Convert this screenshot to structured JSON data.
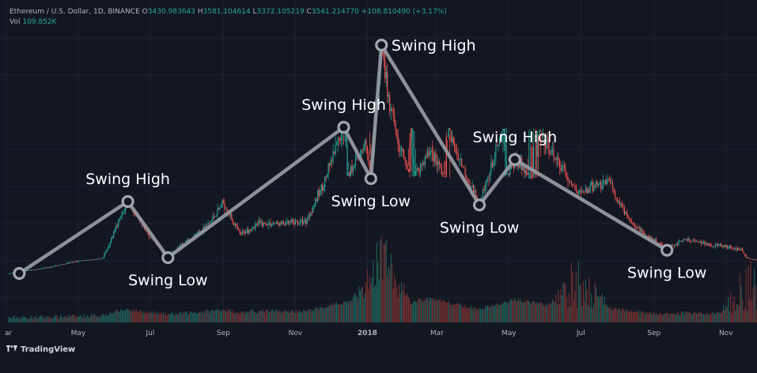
{
  "header": {
    "symbol": "Ethereum / U.S. Dollar, 1D, BINANCE",
    "o_label": "O",
    "o_value": "3430.983643",
    "h_label": "H",
    "h_value": "3581.104614",
    "l_label": "L",
    "l_value": "3372.105219",
    "c_label": "C",
    "c_value": "3541.214770",
    "change": "+108.810490 (+3.17%)",
    "vol_label": "Vol",
    "vol_value": "109.852K"
  },
  "brand": {
    "name": "TradingView",
    "icon": "tradingview-logo-icon"
  },
  "colors": {
    "background": "#131722",
    "up": "#26a69a",
    "down": "#ef5350",
    "swing_line": "#9598a1",
    "swing_text": "#ffffff",
    "axis_text": "#b2b5be"
  },
  "chart_data": {
    "type": "candlestick",
    "title": "Ethereum / U.S. Dollar, 1D, BINANCE",
    "x_axis": {
      "tick_labels": [
        "ar",
        "May",
        "Jul",
        "Sep",
        "Nov",
        "2018",
        "Mar",
        "May",
        "Jul",
        "Sep",
        "Nov"
      ]
    },
    "price_path": {
      "points": [
        [
          "2017-03-03",
          20
        ],
        [
          "2017-03-20",
          35
        ],
        [
          "2017-04-05",
          47
        ],
        [
          "2017-05-01",
          80
        ],
        [
          "2017-05-20",
          130
        ],
        [
          "2017-06-12",
          395
        ],
        [
          "2017-06-25",
          280
        ],
        [
          "2017-07-16",
          155
        ],
        [
          "2017-08-01",
          225
        ],
        [
          "2017-08-20",
          300
        ],
        [
          "2017-09-01",
          390
        ],
        [
          "2017-09-15",
          250
        ],
        [
          "2017-10-01",
          300
        ],
        [
          "2017-10-25",
          300
        ],
        [
          "2017-11-10",
          310
        ],
        [
          "2017-11-26",
          480
        ],
        [
          "2017-12-12",
          690
        ],
        [
          "2017-12-22",
          820
        ],
        [
          "2017-12-30",
          900
        ],
        [
          "2018-01-04",
          720
        ],
        [
          "2018-01-08",
          1050
        ],
        [
          "2018-01-13",
          1420
        ],
        [
          "2018-01-20",
          1090
        ],
        [
          "2018-02-06",
          700
        ],
        [
          "2018-02-24",
          870
        ],
        [
          "2018-03-15",
          620
        ],
        [
          "2018-04-06",
          380
        ],
        [
          "2018-04-20",
          590
        ],
        [
          "2018-05-06",
          820
        ],
        [
          "2018-05-20",
          720
        ],
        [
          "2018-06-10",
          560
        ],
        [
          "2018-06-28",
          430
        ],
        [
          "2018-07-24",
          470
        ],
        [
          "2018-08-14",
          295
        ],
        [
          "2018-09-12",
          185
        ],
        [
          "2018-09-25",
          230
        ],
        [
          "2018-10-25",
          205
        ],
        [
          "2018-11-14",
          190
        ],
        [
          "2018-11-24",
          105
        ],
        [
          "2018-12-10",
          95
        ]
      ]
    },
    "volume_peak_dates": [
      "2018-01-13",
      "2018-06-30",
      "2018-11-20"
    ],
    "swing_points": [
      {
        "date": "2017-03-12",
        "price": 20,
        "label": ""
      },
      {
        "date": "2017-06-12",
        "price": 395,
        "label": "Swing High"
      },
      {
        "date": "2017-07-16",
        "price": 155,
        "label": "Swing Low"
      },
      {
        "date": "2017-12-12",
        "price": 690,
        "label": "Swing High"
      },
      {
        "date": "2018-01-04",
        "price": 720,
        "label": "Swing Low"
      },
      {
        "date": "2018-01-13",
        "price": 1420,
        "label": "Swing High"
      },
      {
        "date": "2018-04-06",
        "price": 380,
        "label": "Swing Low"
      },
      {
        "date": "2018-05-06",
        "price": 820,
        "label": "Swing High"
      },
      {
        "date": "2018-09-12",
        "price": 185,
        "label": "Swing Low"
      }
    ],
    "grid": true,
    "legend": "none"
  }
}
